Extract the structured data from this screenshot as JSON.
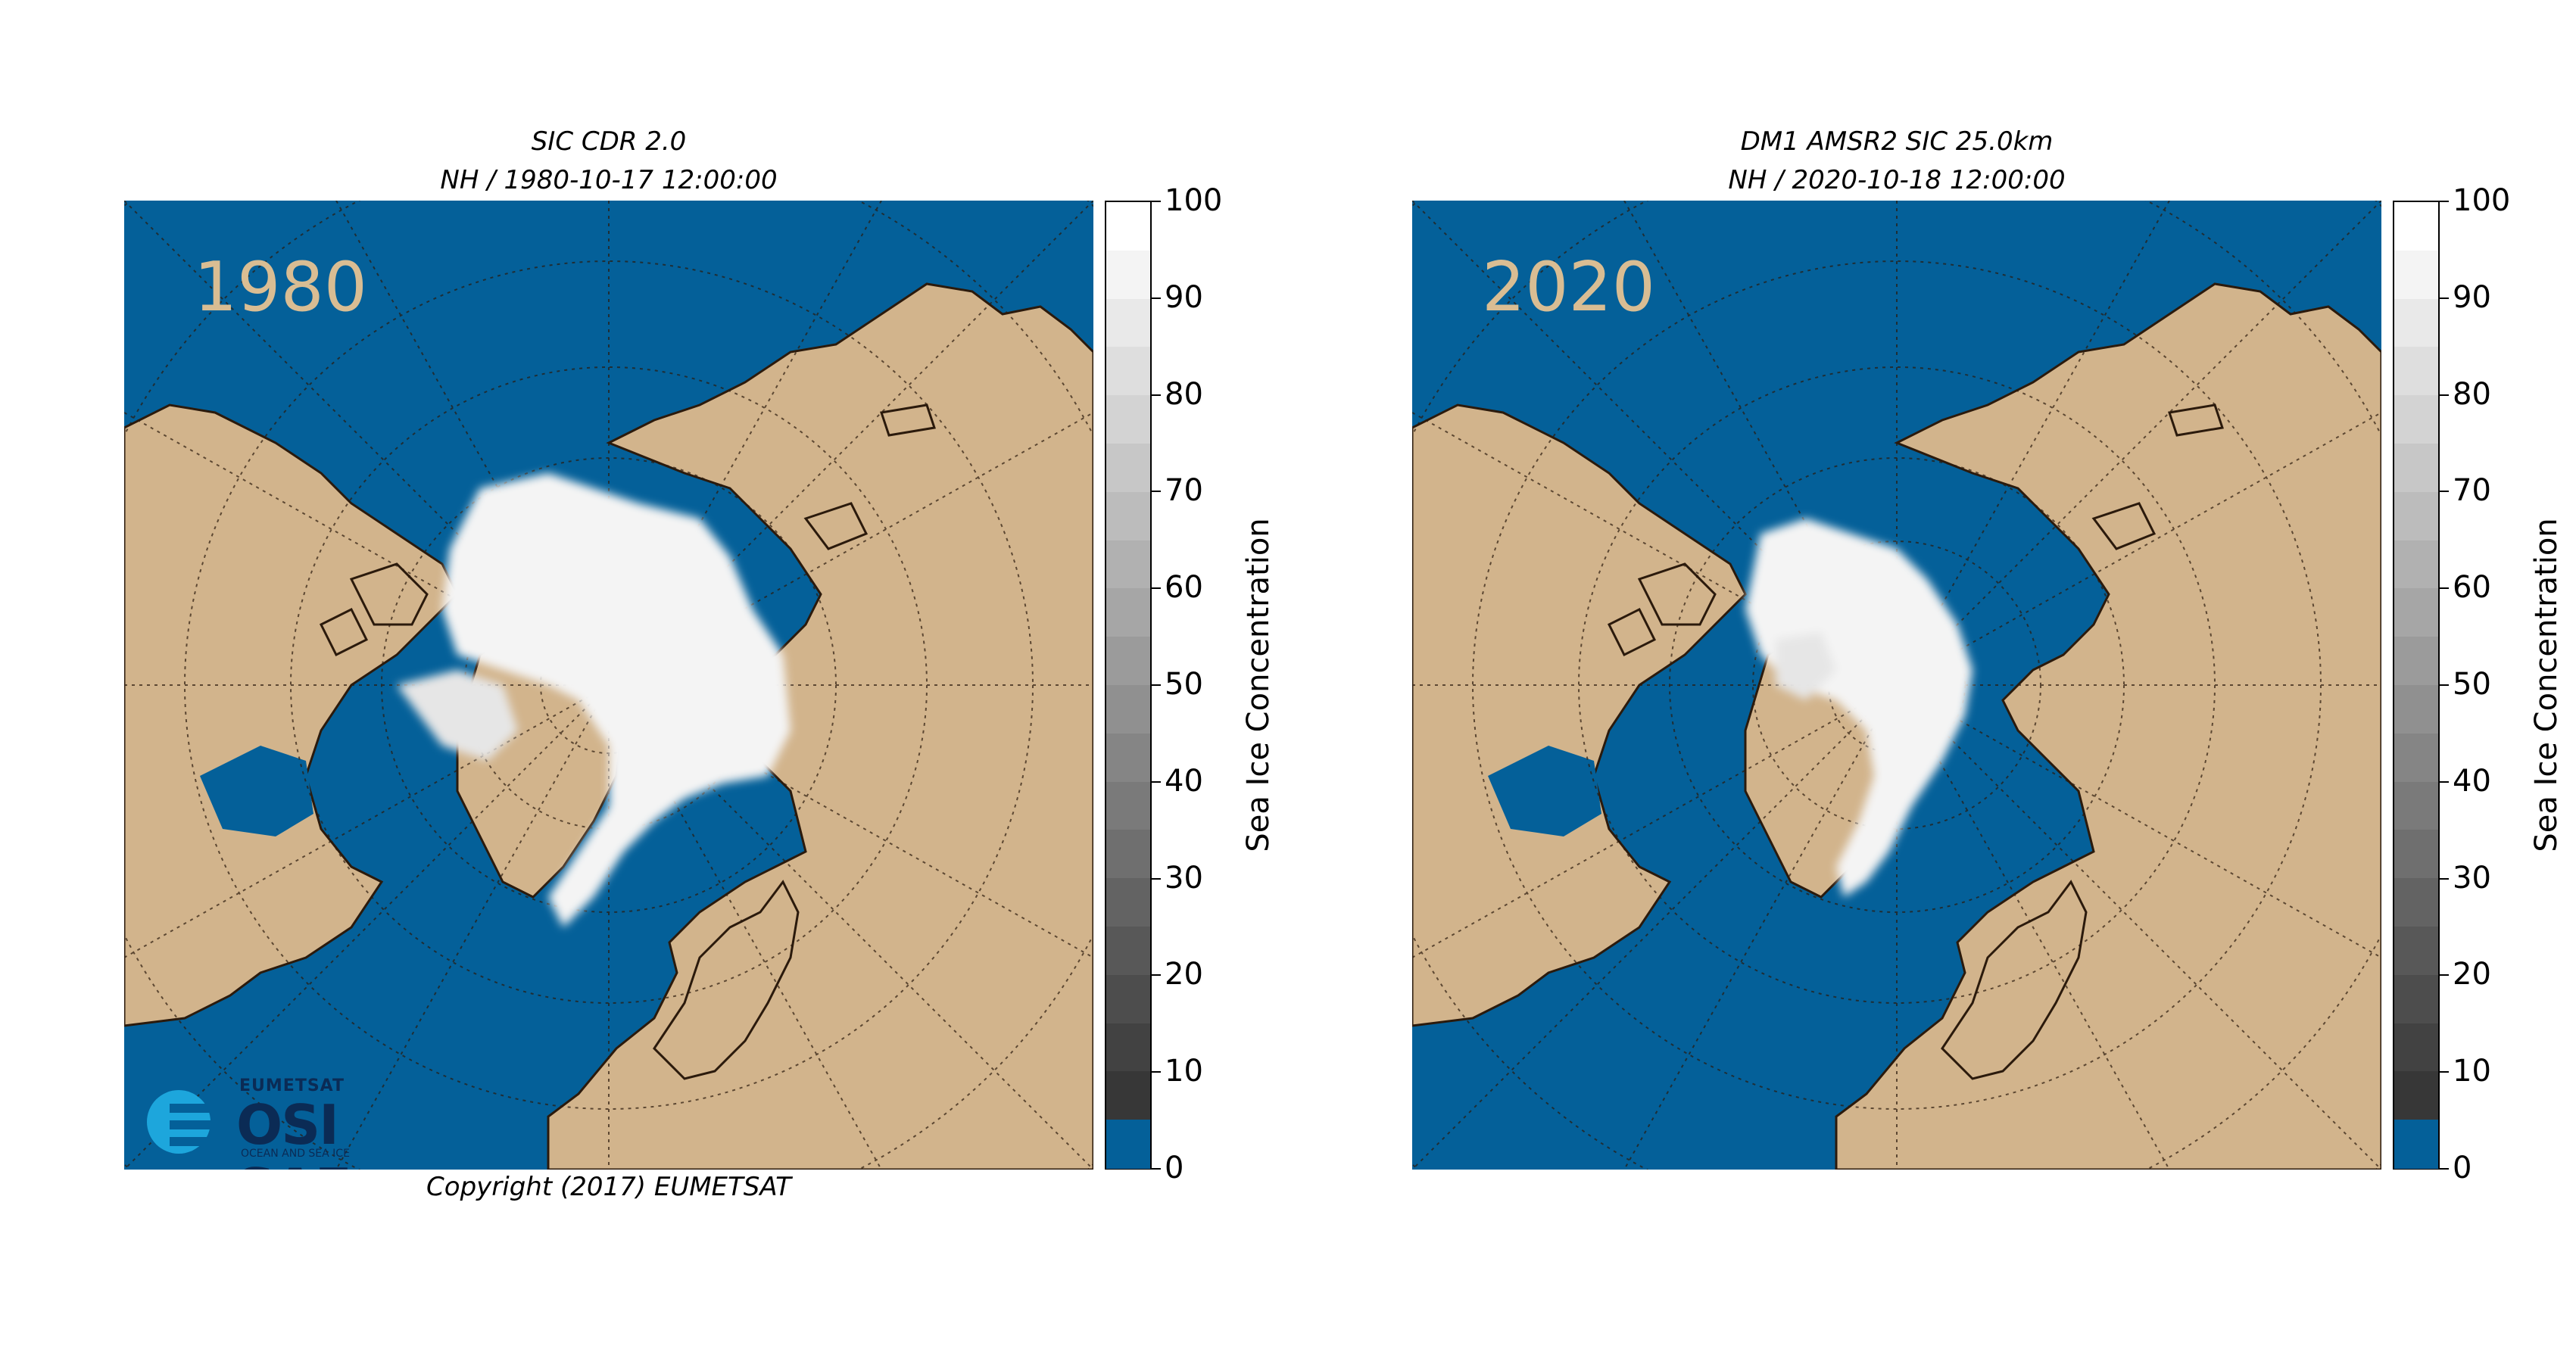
{
  "panels": [
    {
      "title_line1": "SIC CDR 2.0",
      "title_line2": "NH / 1980-10-17 12:00:00",
      "year_label": "1980",
      "copyright": "Copyright (2017)  EUMETSAT",
      "logo": {
        "org": "EUMETSAT",
        "name": "OSI SAF",
        "subtitle": "OCEAN AND SEA ICE"
      }
    },
    {
      "title_line1": "DM1 AMSR2 SIC 25.0km",
      "title_line2": "NH / 2020-10-18 12:00:00",
      "year_label": "2020"
    }
  ],
  "colorbar": {
    "label": "Sea Ice Concentration",
    "ticks": [
      "100",
      "90",
      "80",
      "70",
      "60",
      "50",
      "40",
      "30",
      "20",
      "10",
      "0"
    ]
  },
  "colors": {
    "ocean": "#046099",
    "land": "#d2b48c",
    "ice": "#f4f4f4",
    "year_label": "#d9bd93"
  }
}
